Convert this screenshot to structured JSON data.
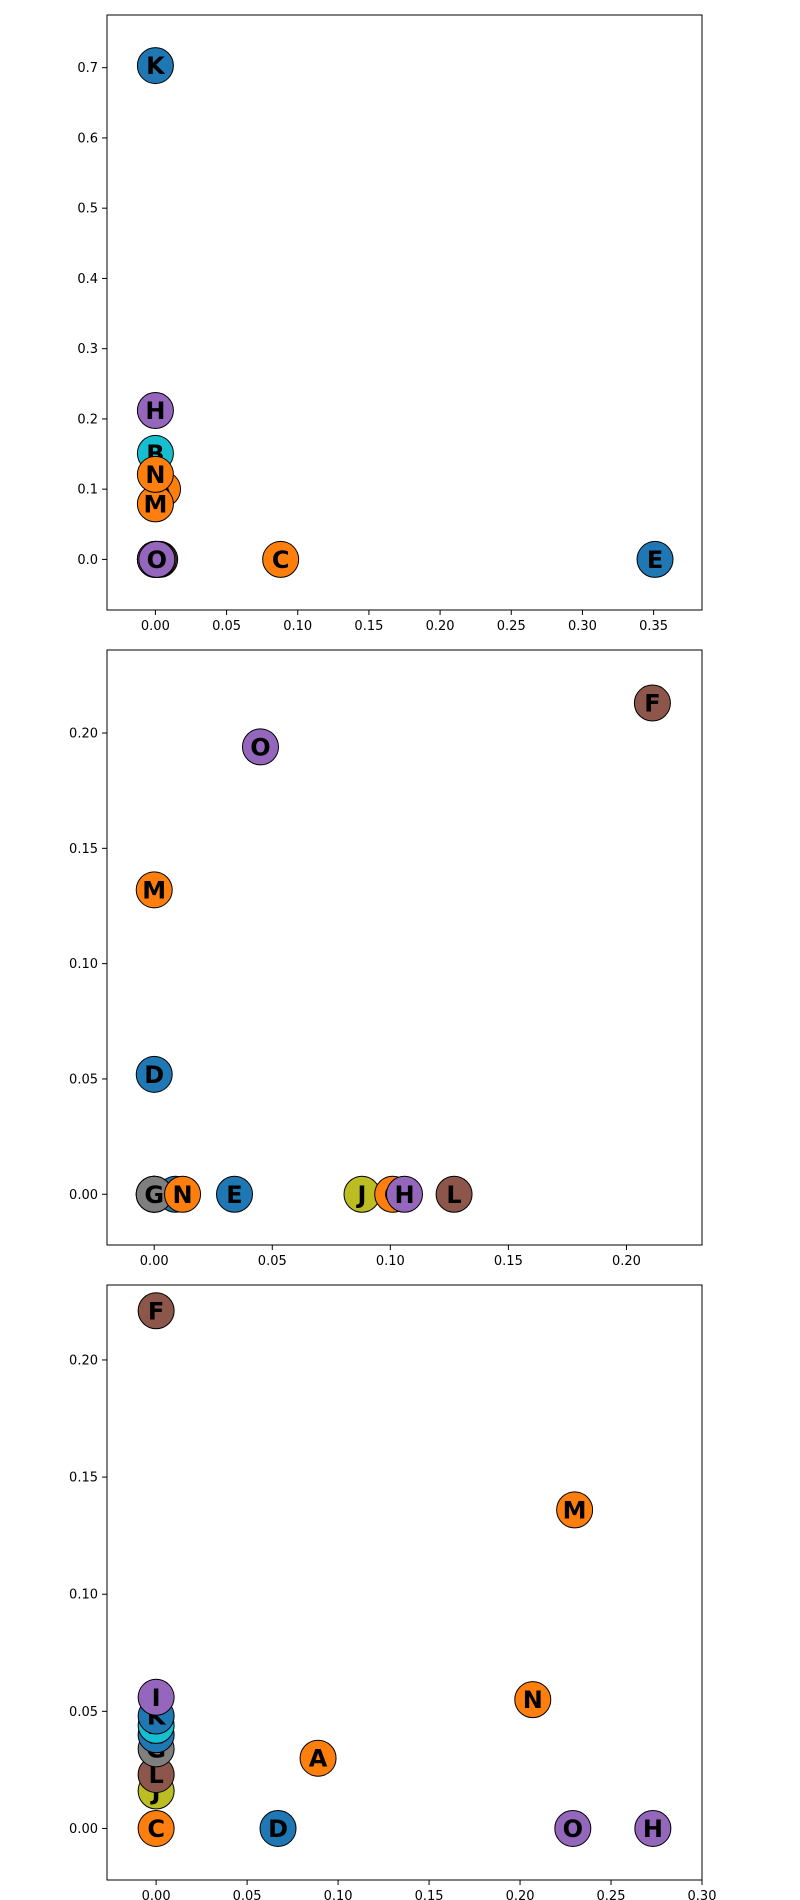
{
  "chart_data": [
    {
      "type": "scatter",
      "title": "",
      "xlabel": "",
      "ylabel": "",
      "xlim": [
        -0.034,
        0.384
      ],
      "ylim": [
        -0.072,
        0.775
      ],
      "xticks": [
        0.0,
        0.05,
        0.1,
        0.15,
        0.2,
        0.25,
        0.3,
        0.35
      ],
      "yticks": [
        0.0,
        0.1,
        0.2,
        0.3,
        0.4,
        0.5,
        0.6,
        0.7
      ],
      "xtick_labels": [
        "0.00",
        "0.05",
        "0.10",
        "0.15",
        "0.20",
        "0.25",
        "0.30",
        "0.35"
      ],
      "ytick_labels": [
        "0.0",
        "0.1",
        "0.2",
        "0.3",
        "0.4",
        "0.5",
        "0.6",
        "0.7"
      ],
      "points": [
        {
          "label": "F",
          "x": 0.003,
          "y": 0.0,
          "color": "#8c564b"
        },
        {
          "label": "L",
          "x": 0.002,
          "y": 0.0,
          "color": "#8c564b"
        },
        {
          "label": "G",
          "x": 0.0,
          "y": 0.0,
          "color": "#7f7f7f"
        },
        {
          "label": "J",
          "x": 0.0,
          "y": 0.0,
          "color": "#bcbd22"
        },
        {
          "label": "D",
          "x": 0.0,
          "y": 0.0,
          "color": "#1f77b4"
        },
        {
          "label": "I",
          "x": 0.0,
          "y": 0.0,
          "color": "#9467bd"
        },
        {
          "label": "O",
          "x": 0.001,
          "y": 0.0,
          "color": "#9467bd"
        },
        {
          "label": "C",
          "x": 0.088,
          "y": 0.0,
          "color": "#ff7f0e"
        },
        {
          "label": "E",
          "x": 0.351,
          "y": 0.0,
          "color": "#1f77b4"
        },
        {
          "label": "A",
          "x": 0.005,
          "y": 0.1,
          "color": "#ff7f0e"
        },
        {
          "label": "M",
          "x": 0.0,
          "y": 0.079,
          "color": "#ff7f0e"
        },
        {
          "label": "B",
          "x": 0.0,
          "y": 0.151,
          "color": "#17becf"
        },
        {
          "label": "N",
          "x": 0.0,
          "y": 0.121,
          "color": "#ff7f0e"
        },
        {
          "label": "H",
          "x": 0.0,
          "y": 0.212,
          "color": "#9467bd"
        },
        {
          "label": "K",
          "x": 0.0,
          "y": 0.703,
          "color": "#1f77b4"
        }
      ]
    },
    {
      "type": "scatter",
      "title": "",
      "xlabel": "",
      "ylabel": "",
      "xlim": [
        -0.02,
        0.232
      ],
      "ylim": [
        -0.022,
        0.236
      ],
      "xticks": [
        0.0,
        0.05,
        0.1,
        0.15,
        0.2
      ],
      "yticks": [
        0.0,
        0.05,
        0.1,
        0.15,
        0.2
      ],
      "xtick_labels": [
        "0.00",
        "0.05",
        "0.10",
        "0.15",
        "0.20"
      ],
      "ytick_labels": [
        "0.00",
        "0.05",
        "0.10",
        "0.15",
        "0.20"
      ],
      "points": [
        {
          "label": "B",
          "x": 0.0,
          "y": 0.0,
          "color": "#17becf"
        },
        {
          "label": "K",
          "x": 0.009,
          "y": 0.0,
          "color": "#1f77b4"
        },
        {
          "label": "A",
          "x": 0.0,
          "y": 0.0,
          "color": "#ff7f0e"
        },
        {
          "label": "G",
          "x": 0.0,
          "y": 0.0,
          "color": "#7f7f7f"
        },
        {
          "label": "N",
          "x": 0.012,
          "y": 0.0,
          "color": "#ff7f0e"
        },
        {
          "label": "E",
          "x": 0.034,
          "y": 0.0,
          "color": "#1f77b4"
        },
        {
          "label": "J",
          "x": 0.088,
          "y": 0.0,
          "color": "#bcbd22"
        },
        {
          "label": "C",
          "x": 0.101,
          "y": 0.0,
          "color": "#ff7f0e"
        },
        {
          "label": "H",
          "x": 0.106,
          "y": 0.0,
          "color": "#9467bd"
        },
        {
          "label": "L",
          "x": 0.127,
          "y": 0.0,
          "color": "#8c564b"
        },
        {
          "label": "D",
          "x": 0.0,
          "y": 0.052,
          "color": "#1f77b4"
        },
        {
          "label": "M",
          "x": 0.0,
          "y": 0.132,
          "color": "#ff7f0e"
        },
        {
          "label": "O",
          "x": 0.045,
          "y": 0.194,
          "color": "#9467bd"
        },
        {
          "label": "F",
          "x": 0.211,
          "y": 0.213,
          "color": "#8c564b"
        }
      ]
    },
    {
      "type": "scatter",
      "title": "",
      "xlabel": "",
      "ylabel": "",
      "xlim": [
        -0.027,
        0.3
      ],
      "ylim": [
        -0.022,
        0.232
      ],
      "xticks": [
        0.0,
        0.05,
        0.1,
        0.15,
        0.2,
        0.25,
        0.3
      ],
      "yticks": [
        0.0,
        0.05,
        0.1,
        0.15,
        0.2
      ],
      "xtick_labels": [
        "0.00",
        "0.05",
        "0.10",
        "0.15",
        "0.20",
        "0.25",
        "0.30"
      ],
      "ytick_labels": [
        "0.00",
        "0.05",
        "0.10",
        "0.15",
        "0.20"
      ],
      "points": [
        {
          "label": "C",
          "x": 0.0,
          "y": 0.0,
          "color": "#ff7f0e"
        },
        {
          "label": "D",
          "x": 0.067,
          "y": 0.0,
          "color": "#1f77b4"
        },
        {
          "label": "O",
          "x": 0.229,
          "y": 0.0,
          "color": "#9467bd"
        },
        {
          "label": "H",
          "x": 0.273,
          "y": 0.0,
          "color": "#9467bd"
        },
        {
          "label": "J",
          "x": 0.0,
          "y": 0.016,
          "color": "#bcbd22"
        },
        {
          "label": "L",
          "x": 0.0,
          "y": 0.023,
          "color": "#8c564b"
        },
        {
          "label": "A",
          "x": 0.089,
          "y": 0.03,
          "color": "#ff7f0e"
        },
        {
          "label": "G",
          "x": 0.0,
          "y": 0.034,
          "color": "#7f7f7f"
        },
        {
          "label": "E",
          "x": 0.0,
          "y": 0.04,
          "color": "#1f77b4"
        },
        {
          "label": "B",
          "x": 0.0,
          "y": 0.044,
          "color": "#17becf"
        },
        {
          "label": "K",
          "x": 0.0,
          "y": 0.048,
          "color": "#1f77b4"
        },
        {
          "label": "I",
          "x": 0.0,
          "y": 0.056,
          "color": "#9467bd"
        },
        {
          "label": "N",
          "x": 0.207,
          "y": 0.055,
          "color": "#ff7f0e"
        },
        {
          "label": "M",
          "x": 0.23,
          "y": 0.136,
          "color": "#ff7f0e"
        },
        {
          "label": "F",
          "x": 0.0,
          "y": 0.221,
          "color": "#8c564b"
        }
      ]
    }
  ]
}
